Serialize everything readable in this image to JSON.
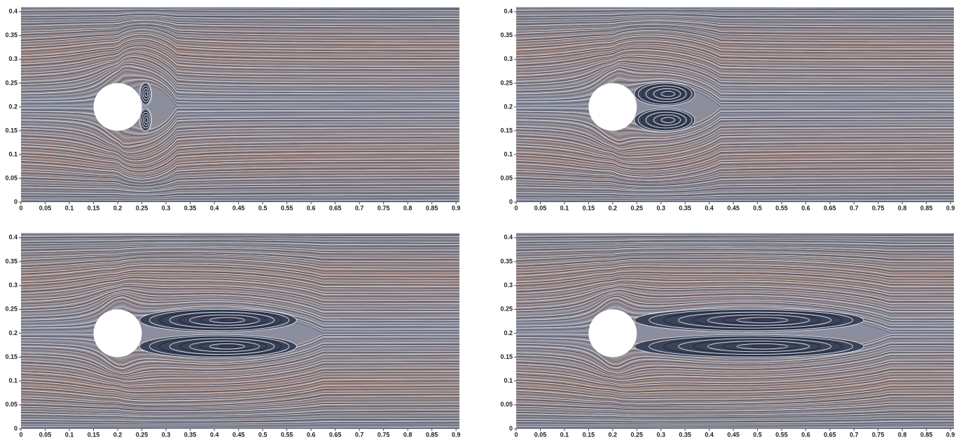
{
  "chart_data": [
    {
      "type": "streamlines",
      "xlim": [
        0,
        0.907
      ],
      "ylim": [
        0,
        0.41
      ],
      "xticks": [
        0,
        0.05,
        0.1,
        0.15,
        0.2,
        0.25,
        0.3,
        0.35,
        0.4,
        0.45,
        0.5,
        0.55,
        0.6,
        0.65,
        0.7,
        0.75,
        0.8,
        0.85,
        0.9
      ],
      "yticks": [
        0,
        0.05,
        0.1,
        0.15,
        0.2,
        0.25,
        0.3,
        0.35,
        0.4
      ],
      "cylinder": {
        "x": 0.2,
        "y": 0.2,
        "r": 0.05
      },
      "wake_end": 0.27
    },
    {
      "type": "streamlines",
      "xlim": [
        0,
        0.907
      ],
      "ylim": [
        0,
        0.41
      ],
      "xticks": [
        0,
        0.05,
        0.1,
        0.15,
        0.2,
        0.25,
        0.3,
        0.35,
        0.4,
        0.45,
        0.5,
        0.55,
        0.6,
        0.65,
        0.7,
        0.75,
        0.8,
        0.85,
        0.9
      ],
      "yticks": [
        0,
        0.05,
        0.1,
        0.15,
        0.2,
        0.25,
        0.3,
        0.35,
        0.4
      ],
      "cylinder": {
        "x": 0.2,
        "y": 0.2,
        "r": 0.05
      },
      "wake_end": 0.37
    },
    {
      "type": "streamlines",
      "xlim": [
        0,
        0.907
      ],
      "ylim": [
        0,
        0.41
      ],
      "xticks": [
        0,
        0.05,
        0.1,
        0.15,
        0.2,
        0.25,
        0.3,
        0.35,
        0.4,
        0.45,
        0.5,
        0.55,
        0.6,
        0.65,
        0.7,
        0.75,
        0.8,
        0.85,
        0.9
      ],
      "yticks": [
        0,
        0.05,
        0.1,
        0.15,
        0.2,
        0.25,
        0.3,
        0.35,
        0.4
      ],
      "cylinder": {
        "x": 0.2,
        "y": 0.2,
        "r": 0.05
      },
      "wake_end": 0.57
    },
    {
      "type": "streamlines",
      "xlim": [
        0,
        0.907
      ],
      "ylim": [
        0,
        0.41
      ],
      "xticks": [
        0,
        0.05,
        0.1,
        0.15,
        0.2,
        0.25,
        0.3,
        0.35,
        0.4,
        0.45,
        0.5,
        0.55,
        0.6,
        0.65,
        0.7,
        0.75,
        0.8,
        0.85,
        0.9
      ],
      "yticks": [
        0,
        0.05,
        0.1,
        0.15,
        0.2,
        0.25,
        0.3,
        0.35,
        0.4
      ],
      "cylinder": {
        "x": 0.2,
        "y": 0.2,
        "r": 0.05
      },
      "wake_end": 0.72
    }
  ]
}
